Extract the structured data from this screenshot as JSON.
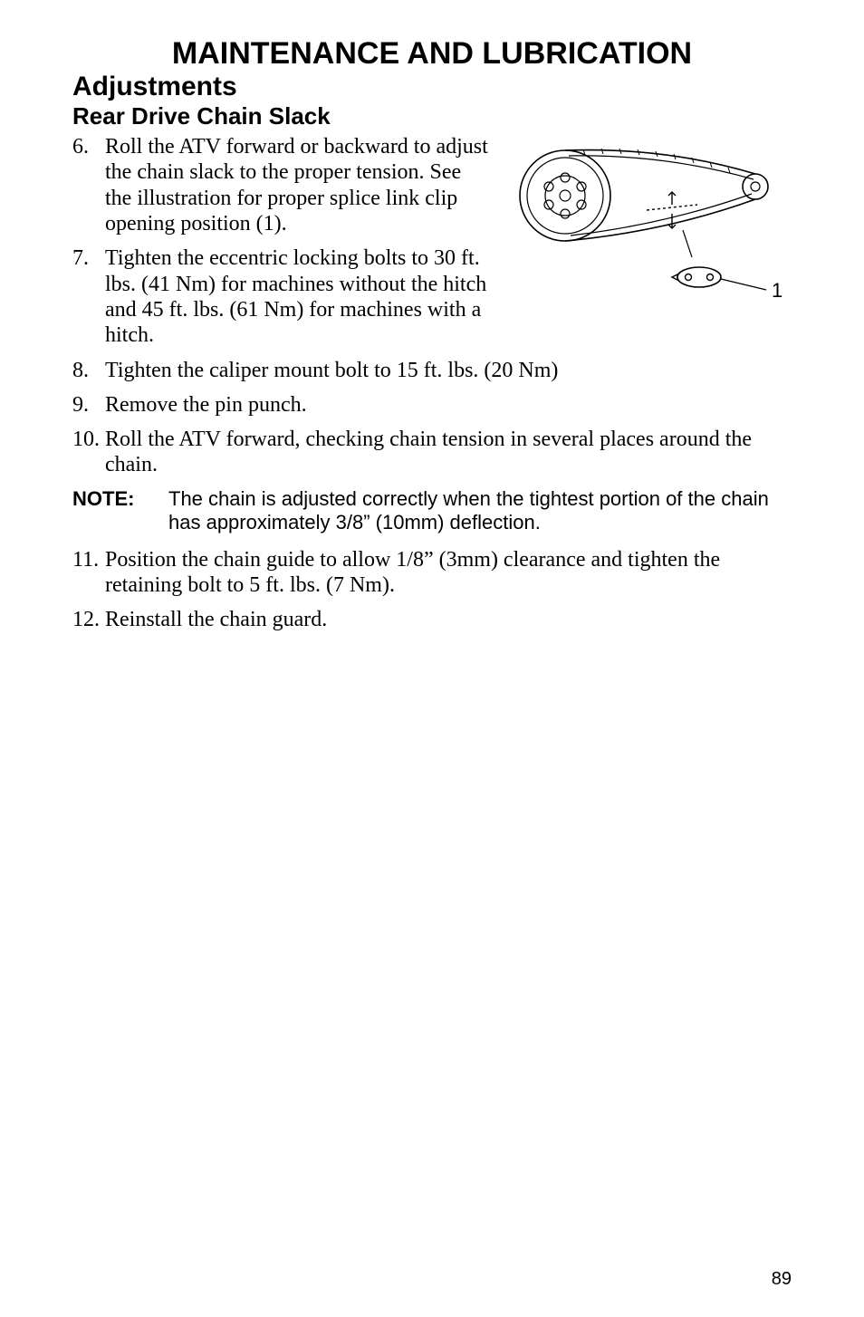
{
  "title": "MAINTENANCE AND LUBRICATION",
  "section": "Adjustments",
  "subsection": "Rear Drive Chain Slack",
  "title_fontsize": 34,
  "section_fontsize": 30,
  "sub_fontsize": 26,
  "body_fontsize": 24,
  "note_fontsize": 22,
  "pagenum_fontsize": 20,
  "text_color": "#000000",
  "bg_color": "#ffffff",
  "items_top": [
    {
      "n": "6.",
      "t": "Roll the ATV forward or backward to adjust the chain slack to the proper tension. See the illustration for proper splice link clip opening position (1)."
    },
    {
      "n": "7.",
      "t": "Tighten the eccentric locking bolts to 30 ft. lbs. (41 Nm) for machines without the hitch and 45 ft. lbs. (61 Nm) for machines with a hitch."
    }
  ],
  "items_mid": [
    {
      "n": "8.",
      "t": "Tighten the caliper mount bolt to 15 ft. lbs. (20 Nm)"
    },
    {
      "n": "9.",
      "t": "Remove the pin punch."
    },
    {
      "n": "10.",
      "t": "Roll the ATV forward, checking chain tension in several places around the chain."
    }
  ],
  "note_label": "NOTE:",
  "note_text": "The chain is adjusted correctly when the tightest portion of the chain has approximately 3/8” (10mm) deflection.",
  "items_bottom": [
    {
      "n": "11.",
      "t": "Position the chain guide to allow 1/8” (3mm) clearance and tighten the retaining bolt to 5 ft. lbs. (7 Nm)."
    },
    {
      "n": "12.",
      "t": "Reinstall the chain guard."
    }
  ],
  "page_number": "89",
  "diagram": {
    "label": "1",
    "label_fontsize": 22,
    "stroke": "#000000",
    "stroke_width": 1.6,
    "fill": "#ffffff"
  }
}
